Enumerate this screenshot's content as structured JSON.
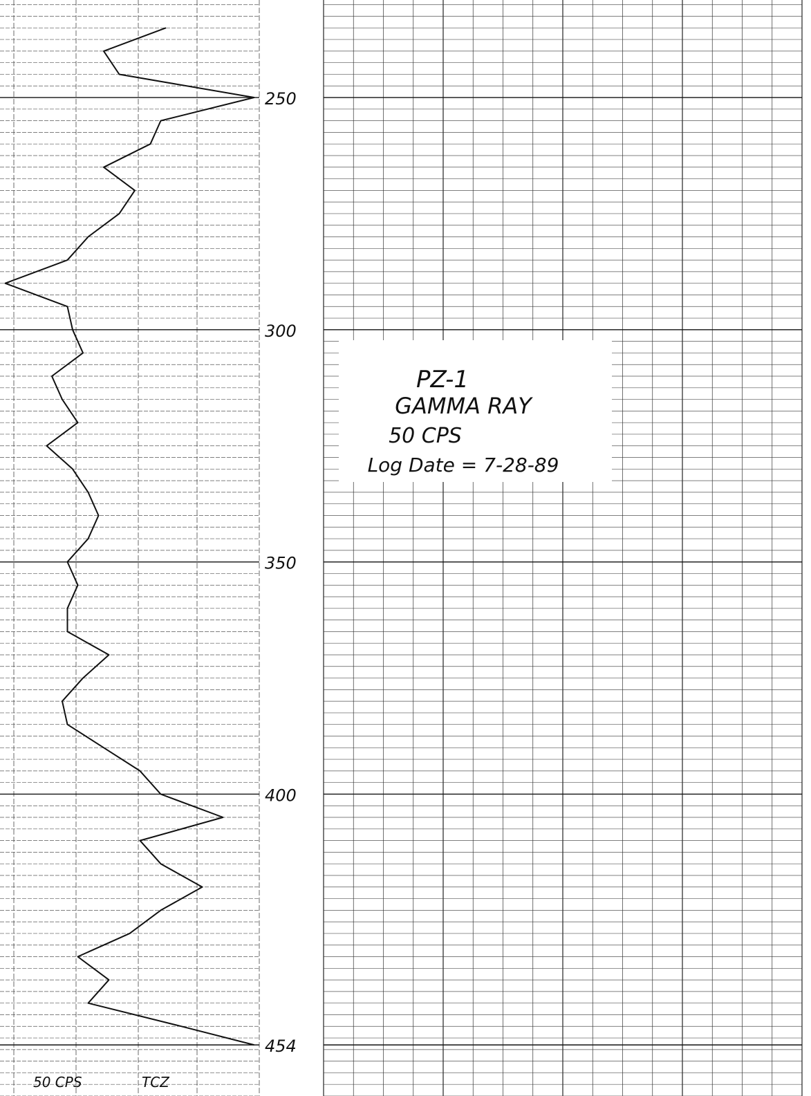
{
  "chart_data": {
    "type": "line",
    "title": "PZ-1",
    "subtitle": "GAMMA RAY",
    "scale_note": "50 CPS",
    "log_date": "Log Date = 7-28-89",
    "footer_scale": "50 CPS",
    "footer_code": "TCZ",
    "y_reversed": true,
    "ylim": [
      229,
      465
    ],
    "yticks": [
      250,
      300,
      350,
      400,
      454
    ],
    "xlim": [
      0,
      50
    ],
    "grid": true,
    "series": [
      {
        "color": "#111111",
        "x": [
          235,
          240,
          245,
          250,
          255,
          260,
          265,
          270,
          275,
          280,
          285,
          290,
          295,
          300,
          305,
          310,
          315,
          320,
          325,
          330,
          335,
          340,
          345,
          350,
          355,
          360,
          365,
          370,
          375,
          380,
          385,
          390,
          395,
          400,
          405,
          410,
          415,
          420,
          425,
          430,
          435,
          440,
          445,
          450,
          454
        ],
        "values": [
          32,
          20,
          23,
          49,
          31,
          29,
          20,
          26,
          23,
          17,
          13,
          1,
          13,
          14,
          16,
          10,
          12,
          15,
          9,
          14,
          17,
          19,
          17,
          13,
          15,
          13,
          13,
          21,
          16,
          12,
          13,
          20,
          27,
          31,
          43,
          27,
          31,
          39,
          31,
          25,
          15,
          21,
          17,
          35,
          49
        ]
      }
    ]
  }
}
